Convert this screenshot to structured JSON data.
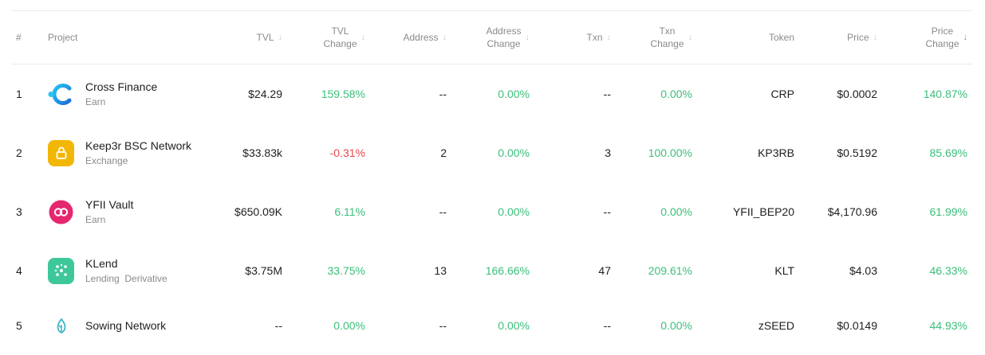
{
  "table": {
    "headers": {
      "rank": "#",
      "project": "Project",
      "tvl": "TVL",
      "tvl_change": [
        "TVL",
        "Change"
      ],
      "address": "Address",
      "address_change": [
        "Address",
        "Change"
      ],
      "txn": "Txn",
      "txn_change": [
        "Txn",
        "Change"
      ],
      "token": "Token",
      "price": "Price",
      "price_change": [
        "Price",
        "Change"
      ]
    },
    "sort_icon": "arrow-down-icon",
    "rows": [
      {
        "rank": "1",
        "name": "Cross Finance",
        "category": "Earn",
        "icon": "cross-finance-logo-icon",
        "tvl": "$24.29",
        "tvl_change": "159.58%",
        "tvl_change_color": "#3bbf7a",
        "address": "--",
        "address_change": "0.00%",
        "txn": "--",
        "txn_change": "0.00%",
        "token": "CRP",
        "price": "$0.0002",
        "price_change": "140.87%"
      },
      {
        "rank": "2",
        "name": "Keep3r BSC Network",
        "category": "Exchange",
        "icon": "lock-logo-icon",
        "tvl": "$33.83k",
        "tvl_change": "-0.31%",
        "tvl_change_color": "#e5484d",
        "address": "2",
        "address_change": "0.00%",
        "txn": "3",
        "txn_change": "100.00%",
        "token": "KP3RB",
        "price": "$0.5192",
        "price_change": "85.69%"
      },
      {
        "rank": "3",
        "name": "YFII Vault",
        "category": "Earn",
        "icon": "yfii-logo-icon",
        "tvl": "$650.09K",
        "tvl_change": "6.11%",
        "tvl_change_color": "#3bbf7a",
        "address": "--",
        "address_change": "0.00%",
        "txn": "--",
        "txn_change": "0.00%",
        "token": "YFII_BEP20",
        "price": "$4,170.96",
        "price_change": "61.99%"
      },
      {
        "rank": "4",
        "name": "KLend",
        "category": "Lending  Derivative",
        "icon": "klend-logo-icon",
        "tvl": "$3.75M",
        "tvl_change": "33.75%",
        "tvl_change_color": "#3bbf7a",
        "address": "13",
        "address_change": "166.66%",
        "txn": "47",
        "txn_change": "209.61%",
        "token": "KLT",
        "price": "$4.03",
        "price_change": "46.33%"
      },
      {
        "rank": "5",
        "name": "Sowing Network",
        "category": "",
        "icon": "sprout-logo-icon",
        "tvl": "--",
        "tvl_change": "0.00%",
        "tvl_change_color": "#3bbf7a",
        "address": "--",
        "address_change": "0.00%",
        "txn": "--",
        "txn_change": "0.00%",
        "token": "zSEED",
        "price": "$0.0149",
        "price_change": "44.93%"
      }
    ]
  },
  "colors": {
    "positive": "#3bbf7a",
    "negative": "#e5484d",
    "header_text": "#8a8a8a"
  }
}
